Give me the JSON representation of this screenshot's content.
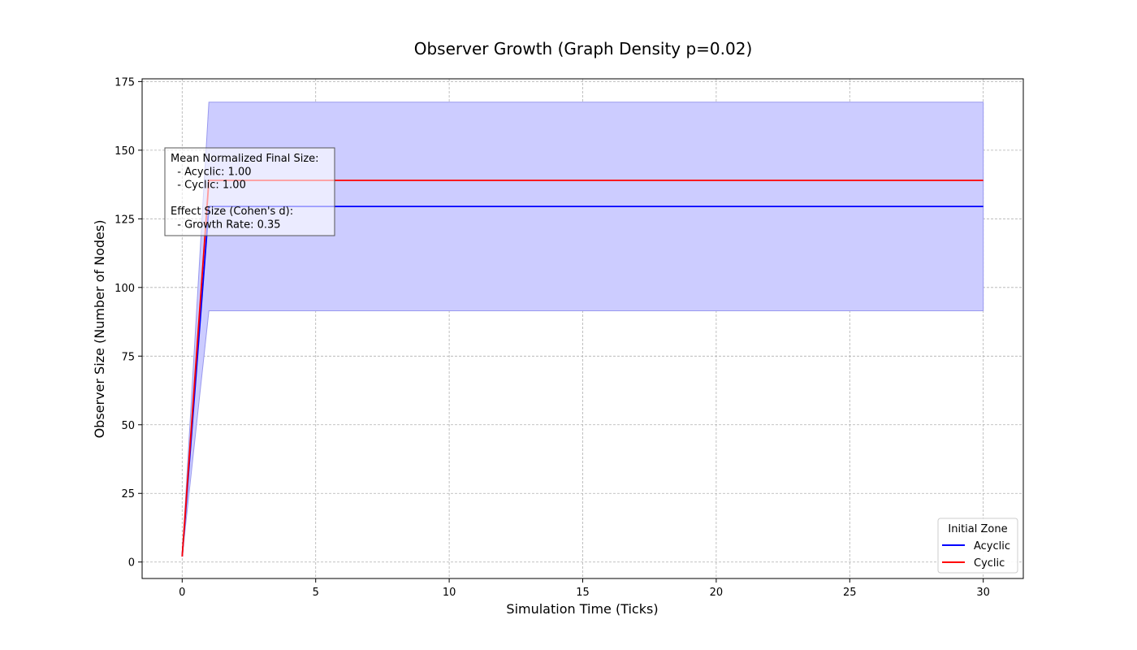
{
  "chart_data": {
    "type": "line",
    "title": "Observer Growth (Graph Density p=0.02)",
    "xlabel": "Simulation Time (Ticks)",
    "ylabel": "Observer Size (Number of Nodes)",
    "xlim": [
      -1.5,
      31.5
    ],
    "ylim": [
      -6,
      176
    ],
    "xticks": [
      0,
      5,
      10,
      15,
      20,
      25,
      30
    ],
    "yticks": [
      0,
      25,
      50,
      75,
      100,
      125,
      150,
      175
    ],
    "grid": true,
    "x": [
      0,
      1,
      2,
      3,
      4,
      5,
      6,
      7,
      8,
      9,
      10,
      11,
      12,
      13,
      14,
      15,
      16,
      17,
      18,
      19,
      20,
      21,
      22,
      23,
      24,
      25,
      26,
      27,
      28,
      29,
      30
    ],
    "series": [
      {
        "name": "Acyclic",
        "color": "#0000ff",
        "values": [
          2,
          129.5,
          129.5,
          129.5,
          129.5,
          129.5,
          129.5,
          129.5,
          129.5,
          129.5,
          129.5,
          129.5,
          129.5,
          129.5,
          129.5,
          129.5,
          129.5,
          129.5,
          129.5,
          129.5,
          129.5,
          129.5,
          129.5,
          129.5,
          129.5,
          129.5,
          129.5,
          129.5,
          129.5,
          129.5,
          129.5
        ],
        "band_lower": [
          2,
          91.5,
          91.5,
          91.5,
          91.5,
          91.5,
          91.5,
          91.5,
          91.5,
          91.5,
          91.5,
          91.5,
          91.5,
          91.5,
          91.5,
          91.5,
          91.5,
          91.5,
          91.5,
          91.5,
          91.5,
          91.5,
          91.5,
          91.5,
          91.5,
          91.5,
          91.5,
          91.5,
          91.5,
          91.5,
          91.5
        ],
        "band_upper": [
          2,
          167.5,
          167.5,
          167.5,
          167.5,
          167.5,
          167.5,
          167.5,
          167.5,
          167.5,
          167.5,
          167.5,
          167.5,
          167.5,
          167.5,
          167.5,
          167.5,
          167.5,
          167.5,
          167.5,
          167.5,
          167.5,
          167.5,
          167.5,
          167.5,
          167.5,
          167.5,
          167.5,
          167.5,
          167.5,
          167.5
        ]
      },
      {
        "name": "Cyclic",
        "color": "#ff0000",
        "values": [
          2,
          139,
          139,
          139,
          139,
          139,
          139,
          139,
          139,
          139,
          139,
          139,
          139,
          139,
          139,
          139,
          139,
          139,
          139,
          139,
          139,
          139,
          139,
          139,
          139,
          139,
          139,
          139,
          139,
          139,
          139
        ]
      }
    ],
    "band_color": "#ccccff",
    "legend": {
      "title": "Initial Zone",
      "placement": "lower-right",
      "entries": [
        "Acyclic",
        "Cyclic"
      ]
    },
    "annotation": {
      "lines": [
        "Mean Normalized Final Size:",
        "  - Acyclic: 1.00",
        "  - Cyclic: 1.00",
        "",
        "Effect Size (Cohen's d):",
        "  - Growth Rate: 0.35"
      ]
    }
  }
}
